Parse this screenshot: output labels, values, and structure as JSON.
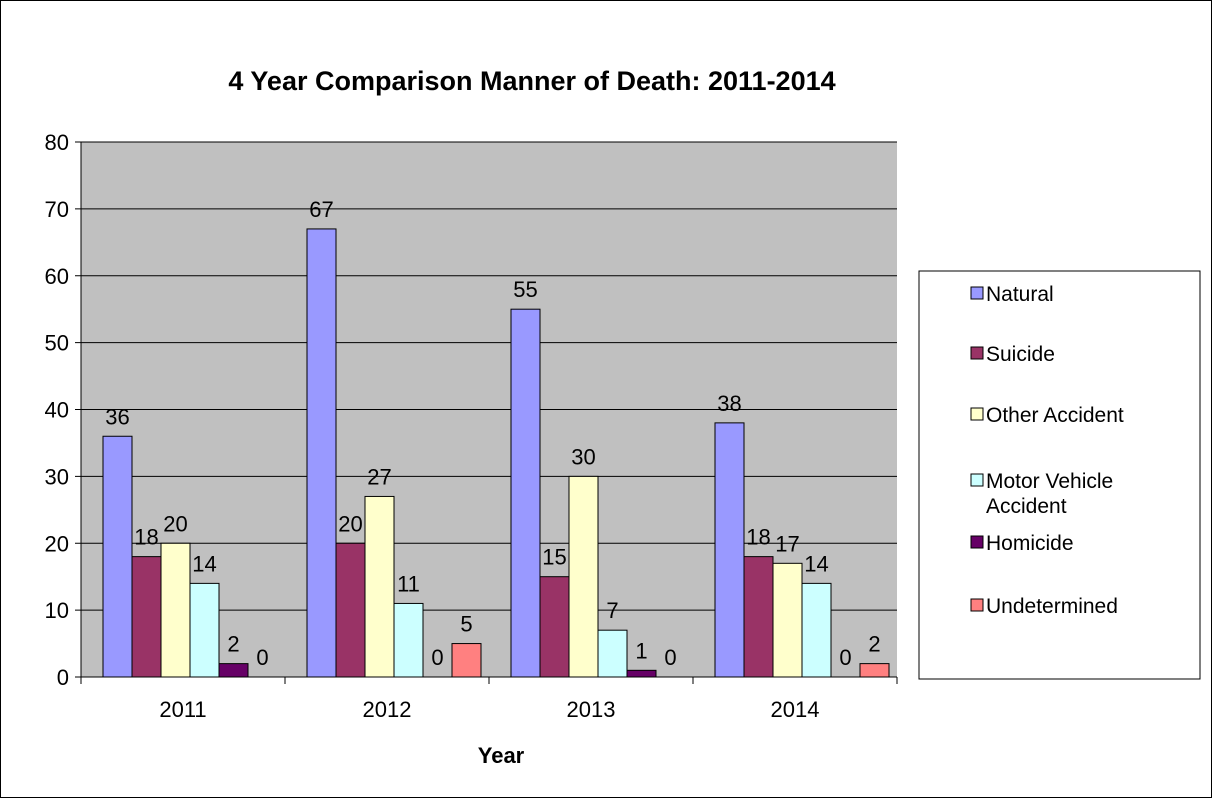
{
  "chart_data": {
    "type": "bar",
    "title": "4 Year Comparison Manner of Death: 2011-2014",
    "xlabel": "Year",
    "ylabel": "",
    "ylim": [
      0,
      80
    ],
    "yticks": [
      0,
      10,
      20,
      30,
      40,
      50,
      60,
      70,
      80
    ],
    "grid": true,
    "legend_position": "right",
    "plot_background": "#C0C0C0",
    "categories": [
      "2011",
      "2012",
      "2013",
      "2014"
    ],
    "series": [
      {
        "name": "Natural",
        "color": "#9999FF",
        "values": [
          36,
          67,
          55,
          38
        ],
        "labels": [
          "36",
          "67",
          "55",
          "38"
        ]
      },
      {
        "name": "Suicide",
        "color": "#993366",
        "values": [
          18,
          20,
          15,
          18
        ],
        "labels": [
          "18",
          "20",
          "15",
          "18"
        ]
      },
      {
        "name": "Other Accident",
        "color": "#FFFFCC",
        "values": [
          20,
          27,
          30,
          17
        ],
        "labels": [
          "20",
          "27",
          "30",
          "17"
        ]
      },
      {
        "name": "Motor Vehicle Accident",
        "legend_lines": [
          "Motor Vehicle",
          "Accident"
        ],
        "color": "#CCFFFF",
        "values": [
          14,
          11,
          7,
          14
        ],
        "labels": [
          "14",
          "11",
          "7",
          "14"
        ]
      },
      {
        "name": "Homicide",
        "color": "#660066",
        "values": [
          2,
          0,
          1,
          0
        ],
        "labels": [
          "2",
          "0",
          "1",
          "0"
        ]
      },
      {
        "name": "Undetermined",
        "color": "#FF8080",
        "values": [
          0,
          5,
          0,
          2
        ],
        "labels": [
          "0",
          "5",
          "0",
          "2"
        ]
      }
    ]
  }
}
